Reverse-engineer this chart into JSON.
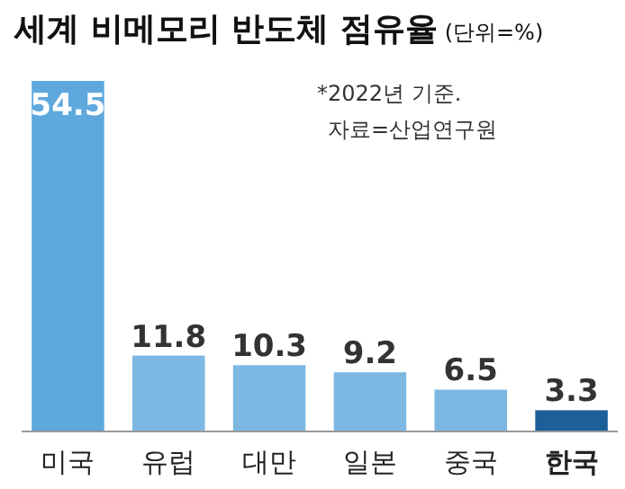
{
  "chart_data": {
    "type": "bar",
    "title": "세계 비메모리 반도체 점유율",
    "subtitle": "(단위=%)",
    "categories": [
      "미국",
      "유럽",
      "대만",
      "일본",
      "중국",
      "한국"
    ],
    "values": [
      54.5,
      11.8,
      10.3,
      9.2,
      6.5,
      3.3
    ],
    "colors": [
      "#5ea8de",
      "#7db8e3",
      "#7db8e3",
      "#7db8e3",
      "#7db8e3",
      "#1d5f99"
    ],
    "data_labels": true,
    "annotations": [
      "*2022년 기준.",
      "자료=산업연구원"
    ]
  }
}
